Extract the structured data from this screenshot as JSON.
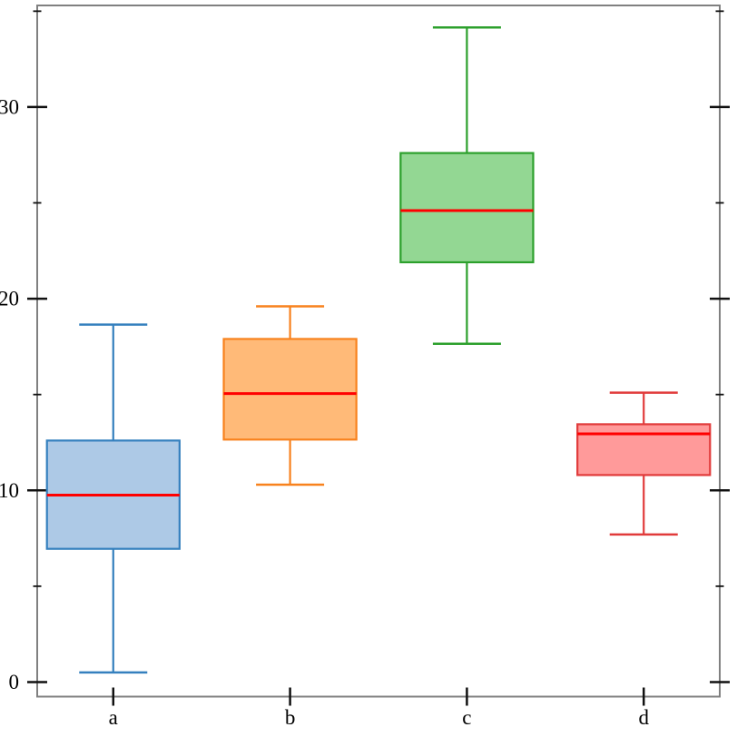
{
  "chart_data": {
    "type": "boxplot",
    "title": "",
    "xlabel": "",
    "ylabel": "",
    "categories": [
      "a",
      "b",
      "c",
      "d"
    ],
    "series": [
      {
        "name": "a",
        "whisker_low": 0.5,
        "q1": 6.95,
        "median": 9.75,
        "q3": 12.6,
        "whisker_high": 18.65,
        "stroke": "#3580be",
        "fill": "#adc9e6"
      },
      {
        "name": "b",
        "whisker_low": 10.3,
        "q1": 12.65,
        "median": 15.05,
        "q3": 17.9,
        "whisker_high": 19.6,
        "stroke": "#f8821d",
        "fill": "#ffba78"
      },
      {
        "name": "c",
        "whisker_low": 17.65,
        "q1": 21.9,
        "median": 24.6,
        "q3": 27.6,
        "whisker_high": 34.15,
        "stroke": "#2ca02c",
        "fill": "#93d793"
      },
      {
        "name": "d",
        "whisker_low": 7.7,
        "q1": 10.8,
        "median": 12.95,
        "q3": 13.45,
        "whisker_high": 15.1,
        "stroke": "#e13b3b",
        "fill": "#ff9a9a"
      }
    ],
    "median_color": "#ff0000",
    "axes": {
      "ylim": [
        -0.76,
        35.3
      ],
      "yticks_major": [
        0,
        10,
        20,
        30
      ],
      "ytick_labels": [
        "0",
        "10",
        "20",
        "30"
      ],
      "yticks_minor": [
        5,
        15,
        25,
        35
      ],
      "xlim": [
        0.57,
        4.43
      ],
      "x_positions": [
        1,
        2,
        3,
        4
      ],
      "frame_color": "#808080",
      "tick_color": "#111111",
      "grid": false,
      "legend": false
    },
    "layout_hints": {
      "box_width_frac": 0.75,
      "cap_width_frac": 0.385
    }
  }
}
